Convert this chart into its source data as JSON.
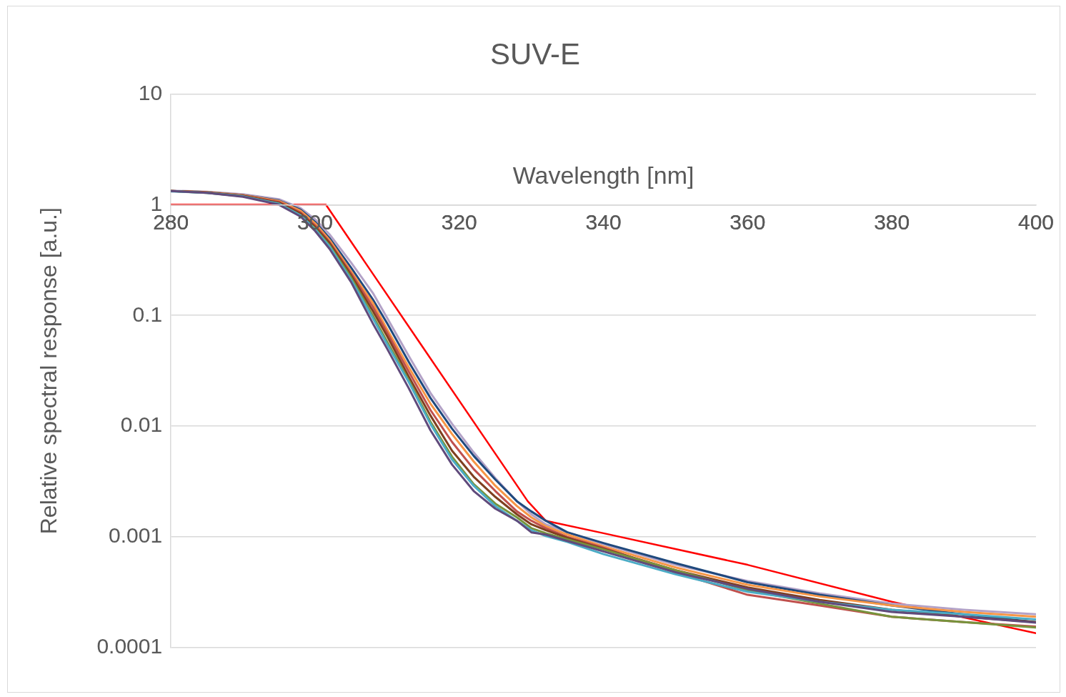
{
  "chart_data": {
    "type": "line",
    "title": "SUV-E",
    "xlabel": "Wavelength [nm]",
    "ylabel": "Relative spectral response [a.u.]",
    "log": "y",
    "grid": "y",
    "legend": false,
    "xlim": [
      280,
      400
    ],
    "xticks": [
      280,
      300,
      320,
      340,
      360,
      380,
      400
    ],
    "ylim": [
      0.0001,
      10
    ],
    "yticks": [
      0.0001,
      0.001,
      0.01,
      0.1,
      1,
      10
    ],
    "x": [
      280,
      285,
      290,
      295,
      298,
      300,
      302,
      305,
      308,
      310,
      313,
      316,
      319,
      322,
      325,
      328,
      330,
      332,
      335,
      340,
      350,
      360,
      370,
      380,
      390,
      400
    ],
    "series": [
      {
        "color": "#604a7b",
        "values": [
          1.33,
          1.28,
          1.18,
          1.0,
          0.78,
          0.58,
          0.4,
          0.2,
          0.085,
          0.05,
          0.022,
          0.0092,
          0.0045,
          0.0026,
          0.0018,
          0.0014,
          0.0011,
          0.00105,
          0.00092,
          0.00074,
          0.00048,
          0.00034,
          0.00026,
          0.00021,
          0.00019,
          0.000168
        ]
      },
      {
        "color": "#4bacc6",
        "values": [
          1.32,
          1.28,
          1.19,
          1.02,
          0.8,
          0.6,
          0.42,
          0.21,
          0.095,
          0.055,
          0.025,
          0.0105,
          0.005,
          0.0029,
          0.0019,
          0.0014,
          0.00115,
          0.00102,
          0.0009,
          0.0007,
          0.00046,
          0.00032,
          0.00026,
          0.00022,
          0.0002,
          0.00018
        ]
      },
      {
        "color": "#77933c",
        "values": [
          1.33,
          1.28,
          1.19,
          1.02,
          0.8,
          0.61,
          0.43,
          0.22,
          0.1,
          0.058,
          0.026,
          0.011,
          0.0053,
          0.003,
          0.002,
          0.0015,
          0.0012,
          0.00108,
          0.00095,
          0.00077,
          0.0005,
          0.00033,
          0.00025,
          0.00019,
          0.00017,
          0.000152
        ]
      },
      {
        "color": "#7f3f1f",
        "values": [
          1.33,
          1.29,
          1.2,
          1.04,
          0.83,
          0.63,
          0.45,
          0.23,
          0.11,
          0.065,
          0.028,
          0.0125,
          0.006,
          0.0035,
          0.0023,
          0.0016,
          0.0013,
          0.00115,
          0.00098,
          0.00078,
          0.0005,
          0.00035,
          0.00027,
          0.00022,
          0.00019,
          0.00017
        ]
      },
      {
        "color": "#c0504d",
        "values": [
          1.33,
          1.29,
          1.21,
          1.06,
          0.85,
          0.65,
          0.46,
          0.24,
          0.12,
          0.07,
          0.031,
          0.014,
          0.0072,
          0.0041,
          0.0026,
          0.0017,
          0.0014,
          0.0012,
          0.001,
          0.0008,
          0.00048,
          0.0003,
          0.00024,
          0.00019,
          0.00017,
          0.000155
        ]
      },
      {
        "color": "#f79646",
        "values": [
          1.33,
          1.3,
          1.22,
          1.08,
          0.88,
          0.68,
          0.48,
          0.25,
          0.13,
          0.075,
          0.034,
          0.016,
          0.0085,
          0.0048,
          0.0029,
          0.0019,
          0.0015,
          0.00125,
          0.00105,
          0.00082,
          0.00053,
          0.00037,
          0.00029,
          0.00024,
          0.00021,
          0.00019
        ]
      },
      {
        "color": "#1f497d",
        "values": [
          1.33,
          1.3,
          1.22,
          1.09,
          0.9,
          0.7,
          0.5,
          0.27,
          0.14,
          0.085,
          0.038,
          0.018,
          0.0095,
          0.0054,
          0.0033,
          0.0021,
          0.0017,
          0.0014,
          0.0011,
          0.00088,
          0.00058,
          0.00039,
          0.0003,
          0.00024,
          0.0002,
          0.00017
        ]
      },
      {
        "color": "#b3a2c7",
        "values": [
          1.34,
          1.31,
          1.24,
          1.12,
          0.93,
          0.74,
          0.54,
          0.3,
          0.16,
          0.095,
          0.043,
          0.02,
          0.0105,
          0.0058,
          0.0034,
          0.0021,
          0.0016,
          0.0013,
          0.0011,
          0.00086,
          0.00056,
          0.0004,
          0.00031,
          0.00025,
          0.00022,
          0.0002
        ]
      },
      {
        "color": "#ff0000",
        "x": [
          280,
          301.5,
          315,
          329.5,
          332,
          340,
          360,
          380,
          400
        ],
        "values": [
          1,
          1,
          0.051,
          0.0021,
          0.0014,
          0.00108,
          0.00056,
          0.00026,
          0.000135
        ]
      }
    ]
  }
}
